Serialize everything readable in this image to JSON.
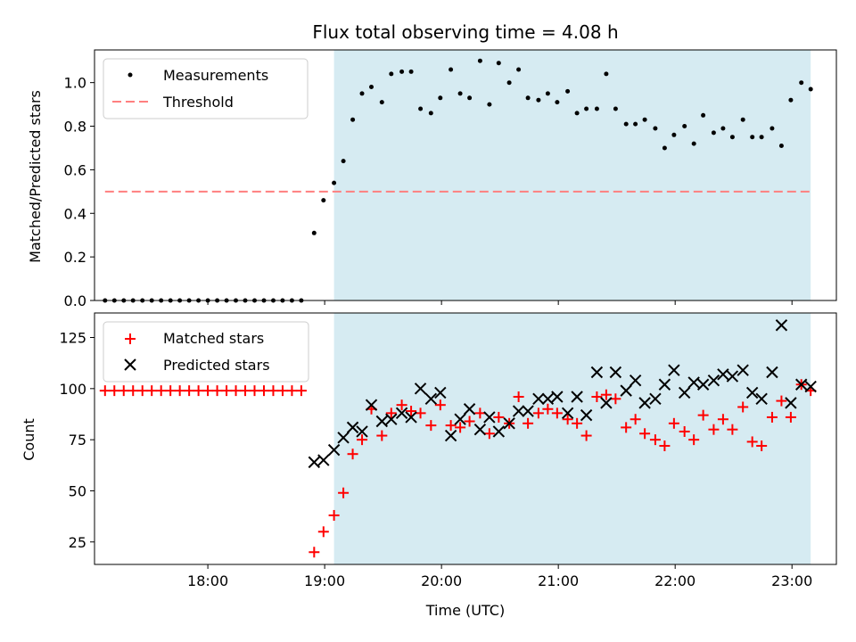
{
  "chart_data": {
    "type": "scatter",
    "title": "Flux total observing time = 4.08 h",
    "xlabel": "Time (UTC)",
    "x_tick_labels": [
      "18:00",
      "19:00",
      "20:00",
      "21:00",
      "22:00",
      "23:00"
    ],
    "x_tick_values": [
      18,
      19,
      20,
      21,
      22,
      23
    ],
    "xlim": [
      17.03,
      23.38
    ],
    "observing_window": [
      19.08,
      23.16
    ],
    "top": {
      "ylabel": "Matched/Predicted stars",
      "ylim": [
        0,
        1.15
      ],
      "y_ticks": [
        0.0,
        0.2,
        0.4,
        0.6,
        0.8,
        1.0
      ],
      "y_tick_labels": [
        "0.0",
        "0.2",
        "0.4",
        "0.6",
        "0.8",
        "1.0"
      ],
      "threshold": {
        "value": 0.5,
        "x_range": [
          17.12,
          23.16
        ]
      },
      "legend": {
        "measurements": "Measurements",
        "threshold": "Threshold"
      },
      "series": {
        "name": "Measurements",
        "x": [
          17.12,
          17.2,
          17.28,
          17.36,
          17.44,
          17.52,
          17.6,
          17.68,
          17.76,
          17.84,
          17.92,
          18.0,
          18.08,
          18.16,
          18.24,
          18.32,
          18.4,
          18.48,
          18.56,
          18.64,
          18.72,
          18.8,
          18.91,
          18.99,
          19.08,
          19.16,
          19.24,
          19.32,
          19.4,
          19.49,
          19.57,
          19.66,
          19.74,
          19.82,
          19.91,
          19.99,
          20.08,
          20.16,
          20.24,
          20.33,
          20.41,
          20.49,
          20.58,
          20.66,
          20.74,
          20.83,
          20.91,
          20.99,
          21.08,
          21.16,
          21.24,
          21.33,
          21.41,
          21.49,
          21.58,
          21.66,
          21.74,
          21.83,
          21.91,
          21.99,
          22.08,
          22.16,
          22.24,
          22.33,
          22.41,
          22.49,
          22.58,
          22.66,
          22.74,
          22.83,
          22.91,
          22.99,
          23.08,
          23.16
        ],
        "y": [
          0,
          0,
          0,
          0,
          0,
          0,
          0,
          0,
          0,
          0,
          0,
          0,
          0,
          0,
          0,
          0,
          0,
          0,
          0,
          0,
          0,
          0,
          0.31,
          0.46,
          0.54,
          0.64,
          0.83,
          0.95,
          0.98,
          0.91,
          1.04,
          1.05,
          1.05,
          0.88,
          0.86,
          0.93,
          1.06,
          0.95,
          0.93,
          1.1,
          0.9,
          1.09,
          1.0,
          1.06,
          0.93,
          0.92,
          0.95,
          0.91,
          0.96,
          0.86,
          0.88,
          0.88,
          1.04,
          0.88,
          0.81,
          0.81,
          0.83,
          0.79,
          0.7,
          0.76,
          0.8,
          0.72,
          0.85,
          0.77,
          0.79,
          0.75,
          0.83,
          0.75,
          0.75,
          0.79,
          0.71,
          0.92,
          1.0,
          0.97
        ]
      }
    },
    "bottom": {
      "ylabel": "Count",
      "ylim": [
        14,
        137
      ],
      "y_ticks": [
        25,
        50,
        75,
        100,
        125
      ],
      "y_tick_labels": [
        "25",
        "50",
        "75",
        "100",
        "125"
      ],
      "legend": {
        "matched": "Matched stars",
        "predicted": "Predicted stars"
      },
      "series": [
        {
          "name": "Matched stars",
          "color": "#ff0000",
          "marker": "plus",
          "x": [
            17.12,
            17.2,
            17.28,
            17.36,
            17.44,
            17.52,
            17.6,
            17.68,
            17.76,
            17.84,
            17.92,
            18.0,
            18.08,
            18.16,
            18.24,
            18.32,
            18.4,
            18.48,
            18.56,
            18.64,
            18.72,
            18.8,
            18.91,
            18.99,
            19.08,
            19.16,
            19.24,
            19.32,
            19.4,
            19.49,
            19.57,
            19.66,
            19.74,
            19.82,
            19.91,
            19.99,
            20.08,
            20.16,
            20.24,
            20.33,
            20.41,
            20.49,
            20.58,
            20.66,
            20.74,
            20.83,
            20.91,
            20.99,
            21.08,
            21.16,
            21.24,
            21.33,
            21.41,
            21.49,
            21.58,
            21.66,
            21.74,
            21.83,
            21.91,
            21.99,
            22.08,
            22.16,
            22.24,
            22.33,
            22.41,
            22.49,
            22.58,
            22.66,
            22.74,
            22.83,
            22.91,
            22.99,
            23.08,
            23.16
          ],
          "y": [
            99,
            99,
            99,
            99,
            99,
            99,
            99,
            99,
            99,
            99,
            99,
            99,
            99,
            99,
            99,
            99,
            99,
            99,
            99,
            99,
            99,
            99,
            20,
            30,
            38,
            49,
            68,
            75,
            90,
            77,
            88,
            92,
            89,
            88,
            82,
            92,
            82,
            81,
            84,
            88,
            78,
            86,
            83,
            96,
            83,
            88,
            90,
            88,
            85,
            83,
            77,
            96,
            97,
            95,
            81,
            85,
            78,
            75,
            72,
            83,
            79,
            75,
            87,
            80,
            85,
            80,
            91,
            74,
            72,
            86,
            94,
            86,
            102,
            99
          ]
        },
        {
          "name": "Predicted stars",
          "color": "#000000",
          "marker": "x",
          "x": [
            18.91,
            18.99,
            19.08,
            19.16,
            19.24,
            19.32,
            19.4,
            19.49,
            19.57,
            19.66,
            19.74,
            19.82,
            19.91,
            19.99,
            20.08,
            20.16,
            20.24,
            20.33,
            20.41,
            20.49,
            20.58,
            20.66,
            20.74,
            20.83,
            20.91,
            20.99,
            21.08,
            21.16,
            21.24,
            21.33,
            21.41,
            21.49,
            21.58,
            21.66,
            21.74,
            21.83,
            21.91,
            21.99,
            22.08,
            22.16,
            22.24,
            22.33,
            22.41,
            22.49,
            22.58,
            22.66,
            22.74,
            22.83,
            22.91,
            22.99,
            23.08,
            23.16
          ],
          "y": [
            64,
            65,
            70,
            76,
            81,
            79,
            92,
            84,
            85,
            88,
            86,
            100,
            95,
            98,
            77,
            85,
            90,
            80,
            86,
            79,
            83,
            89,
            89,
            95,
            95,
            96,
            88,
            96,
            87,
            108,
            93,
            108,
            99,
            104,
            93,
            95,
            102,
            109,
            98,
            103,
            102,
            104,
            107,
            106,
            109,
            98,
            95,
            108,
            131,
            93,
            102,
            101
          ]
        }
      ]
    }
  }
}
